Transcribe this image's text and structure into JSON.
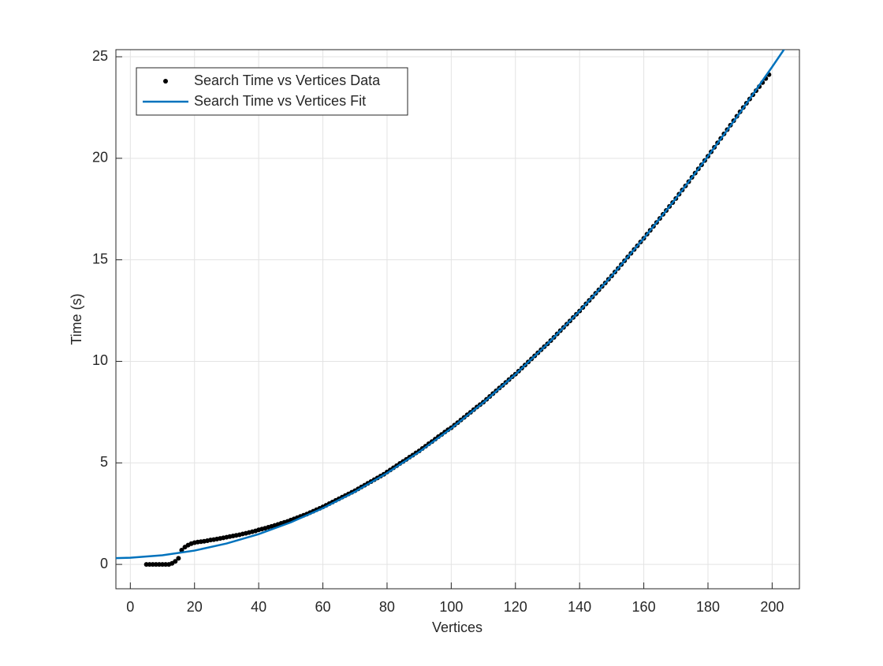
{
  "chart_data": {
    "type": "line",
    "xlabel": "Vertices",
    "ylabel": "Time (s)",
    "xlim": [
      -4.5,
      208.5
    ],
    "ylim": [
      -1.2,
      25.35
    ],
    "xticks": [
      0,
      20,
      40,
      60,
      80,
      100,
      120,
      140,
      160,
      180,
      200
    ],
    "yticks": [
      0,
      5,
      10,
      15,
      20,
      25
    ],
    "grid": true,
    "legend": "upper-left",
    "series": [
      {
        "name": "Search Time vs Vertices Data",
        "style": "markers",
        "color": "#000000",
        "x": [
          5,
          6,
          7,
          8,
          9,
          10,
          11,
          12,
          13,
          14,
          15,
          16,
          17,
          18,
          19,
          20,
          21,
          22,
          23,
          24,
          25,
          26,
          27,
          28,
          29,
          30,
          31,
          32,
          33,
          34,
          35,
          36,
          37,
          38,
          39,
          40,
          41,
          42,
          43,
          44,
          45,
          46,
          47,
          48,
          49,
          50,
          51,
          52,
          53,
          54,
          55,
          56,
          57,
          58,
          59,
          60,
          61,
          62,
          63,
          64,
          65,
          66,
          67,
          68,
          69,
          70,
          71,
          72,
          73,
          74,
          75,
          76,
          77,
          78,
          79,
          80,
          81,
          82,
          83,
          84,
          85,
          86,
          87,
          88,
          89,
          90,
          91,
          92,
          93,
          94,
          95,
          96,
          97,
          98,
          99,
          100,
          101,
          102,
          103,
          104,
          105,
          106,
          107,
          108,
          109,
          110,
          111,
          112,
          113,
          114,
          115,
          116,
          117,
          118,
          119,
          120,
          121,
          122,
          123,
          124,
          125,
          126,
          127,
          128,
          129,
          130,
          131,
          132,
          133,
          134,
          135,
          136,
          137,
          138,
          139,
          140,
          141,
          142,
          143,
          144,
          145,
          146,
          147,
          148,
          149,
          150,
          151,
          152,
          153,
          154,
          155,
          156,
          157,
          158,
          159,
          160,
          161,
          162,
          163,
          164,
          165,
          166,
          167,
          168,
          169,
          170,
          171,
          172,
          173,
          174,
          175,
          176,
          177,
          178,
          179,
          180,
          181,
          182,
          183,
          184,
          185,
          186,
          187,
          188,
          189,
          190,
          191,
          192,
          193,
          194,
          195,
          196,
          197,
          198,
          199
        ],
        "values": [
          0,
          0,
          0,
          0,
          0,
          0,
          0,
          0,
          0.05,
          0.15,
          0.3,
          0.7,
          0.85,
          0.95,
          1.02,
          1.07,
          1.1,
          1.12,
          1.14,
          1.17,
          1.2,
          1.22,
          1.25,
          1.28,
          1.31,
          1.34,
          1.37,
          1.4,
          1.43,
          1.46,
          1.5,
          1.53,
          1.57,
          1.61,
          1.65,
          1.7,
          1.74,
          1.78,
          1.83,
          1.87,
          1.92,
          1.97,
          2.02,
          2.07,
          2.12,
          2.18,
          2.24,
          2.3,
          2.36,
          2.42,
          2.48,
          2.55,
          2.62,
          2.69,
          2.76,
          2.83,
          2.91,
          2.99,
          3.07,
          3.15,
          3.23,
          3.31,
          3.39,
          3.47,
          3.55,
          3.63,
          3.72,
          3.81,
          3.9,
          3.99,
          4.08,
          4.17,
          4.26,
          4.35,
          4.44,
          4.55,
          4.65,
          4.76,
          4.86,
          4.97,
          5.07,
          5.17,
          5.28,
          5.38,
          5.49,
          5.59,
          5.71,
          5.82,
          5.94,
          6.05,
          6.17,
          6.29,
          6.4,
          6.52,
          6.63,
          6.73,
          6.86,
          6.98,
          7.11,
          7.24,
          7.37,
          7.49,
          7.62,
          7.75,
          7.87,
          7.99,
          8.13,
          8.27,
          8.41,
          8.55,
          8.69,
          8.82,
          8.96,
          9.1,
          9.24,
          9.37,
          9.52,
          9.67,
          9.82,
          9.97,
          10.12,
          10.27,
          10.42,
          10.57,
          10.72,
          10.86,
          11.02,
          11.18,
          11.35,
          11.51,
          11.67,
          11.83,
          11.99,
          12.16,
          12.32,
          12.48,
          12.65,
          12.83,
          13.0,
          13.17,
          13.35,
          13.52,
          13.69,
          13.86,
          14.04,
          14.21,
          14.4,
          14.58,
          14.77,
          14.95,
          15.14,
          15.32,
          15.51,
          15.69,
          15.88,
          16.06,
          16.26,
          16.45,
          16.65,
          16.84,
          17.04,
          17.24,
          17.43,
          17.63,
          17.82,
          18.02,
          18.23,
          18.44,
          18.64,
          18.85,
          19.06,
          19.27,
          19.48,
          19.68,
          19.89,
          20.1,
          20.32,
          20.54,
          20.76,
          20.98,
          21.2,
          21.41,
          21.63,
          21.85,
          22.07,
          22.29,
          22.5,
          22.71,
          22.92,
          23.13,
          23.33,
          23.53,
          23.73,
          23.93,
          24.12
        ]
      },
      {
        "name": "Search Time vs Vertices Fit",
        "style": "line",
        "color": "#0072bd",
        "x": [
          -4.5,
          0,
          10,
          20,
          30,
          40,
          50,
          60,
          70,
          80,
          90,
          100,
          110,
          120,
          130,
          140,
          150,
          160,
          170,
          180,
          190,
          200,
          205
        ],
        "values": [
          0.31,
          0.33,
          0.45,
          0.68,
          1.03,
          1.49,
          2.07,
          2.77,
          3.58,
          4.5,
          5.54,
          6.7,
          7.97,
          9.36,
          10.86,
          12.48,
          14.21,
          16.06,
          18.02,
          20.1,
          22.25,
          24.5,
          25.66
        ]
      }
    ]
  }
}
